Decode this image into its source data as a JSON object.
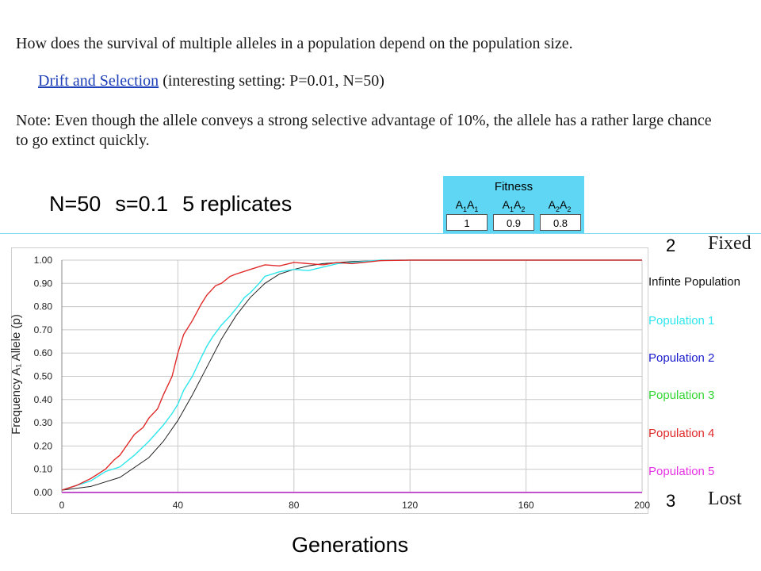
{
  "question": "How does the survival of multiple alleles in a population depend on the population size.",
  "link": {
    "text": "Drift and Selection",
    "suffix": " (interesting setting: P=0.01, N=50)"
  },
  "note": "Note: Even though the allele conveys a strong selective advantage of 10%, the allele has a rather large chance to go extinct quickly.",
  "params": {
    "n": "N=50",
    "s": "s=0.1",
    "reps": "5 replicates"
  },
  "fitness": {
    "title": "Fitness",
    "cols": [
      {
        "a": "A",
        "sa": "1",
        "b": "A",
        "sb": "1",
        "value": "1"
      },
      {
        "a": "A",
        "sa": "1",
        "b": "A",
        "sb": "2",
        "value": "0.9"
      },
      {
        "a": "A",
        "sa": "2",
        "b": "A",
        "sb": "2",
        "value": "0.8"
      }
    ]
  },
  "annotations": {
    "fixed_count": "2",
    "fixed_word": "Fixed",
    "lost_count": "3",
    "lost_word": "Lost"
  },
  "colors": {
    "infinite": "#222222",
    "pop1": "#2ee6ec",
    "pop2": "#1a1acc",
    "pop3": "#33d633",
    "pop4": "#e02a2a",
    "pop5": "#e633e6"
  },
  "chart_data": {
    "type": "line",
    "xlabel": "Generations",
    "ylabel": "Frequency A₁ Allele (p)",
    "xlim": [
      0,
      200
    ],
    "ylim": [
      0,
      1
    ],
    "xticks": [
      "0",
      "40",
      "80",
      "120",
      "160",
      "200"
    ],
    "yticks": [
      "0.00",
      "0.10",
      "0.20",
      "0.30",
      "0.40",
      "0.50",
      "0.60",
      "0.70",
      "0.80",
      "0.90",
      "1.00"
    ],
    "grid": true,
    "legend_position": "right",
    "series": [
      {
        "name": "Infinte Population",
        "x": [
          0,
          10,
          20,
          30,
          35,
          40,
          45,
          50,
          55,
          60,
          65,
          70,
          75,
          80,
          85,
          90,
          100,
          110,
          120,
          140,
          160,
          180,
          200
        ],
        "y": [
          0.01,
          0.026,
          0.065,
          0.15,
          0.22,
          0.31,
          0.42,
          0.54,
          0.66,
          0.76,
          0.84,
          0.9,
          0.94,
          0.96,
          0.975,
          0.985,
          0.994,
          0.998,
          1,
          1,
          1,
          1,
          1
        ]
      },
      {
        "name": "Population 1",
        "x": [
          0,
          5,
          10,
          15,
          20,
          25,
          30,
          35,
          38,
          40,
          42,
          45,
          48,
          50,
          52,
          55,
          58,
          60,
          63,
          65,
          68,
          70,
          75,
          80,
          85,
          90,
          95,
          100,
          110,
          120,
          200
        ],
        "y": [
          0.01,
          0.03,
          0.05,
          0.09,
          0.11,
          0.16,
          0.22,
          0.29,
          0.34,
          0.38,
          0.44,
          0.5,
          0.58,
          0.63,
          0.67,
          0.72,
          0.76,
          0.79,
          0.84,
          0.86,
          0.9,
          0.93,
          0.95,
          0.96,
          0.955,
          0.97,
          0.985,
          0.99,
          1,
          1,
          1
        ]
      },
      {
        "name": "Population 2",
        "x": [
          0,
          10,
          20,
          40,
          80,
          120,
          160,
          200
        ],
        "y": [
          0,
          0,
          0,
          0,
          0,
          0,
          0,
          0
        ]
      },
      {
        "name": "Population 3",
        "x": [
          0,
          10,
          20,
          40,
          80,
          120,
          160,
          200
        ],
        "y": [
          0,
          0,
          0,
          0,
          0,
          0,
          0,
          0
        ]
      },
      {
        "name": "Population 4",
        "x": [
          0,
          5,
          10,
          15,
          18,
          20,
          25,
          28,
          30,
          33,
          35,
          38,
          40,
          42,
          45,
          48,
          50,
          53,
          55,
          58,
          60,
          65,
          70,
          75,
          80,
          85,
          90,
          95,
          100,
          110,
          120,
          200
        ],
        "y": [
          0.01,
          0.03,
          0.06,
          0.1,
          0.14,
          0.16,
          0.25,
          0.28,
          0.32,
          0.36,
          0.42,
          0.5,
          0.6,
          0.68,
          0.74,
          0.81,
          0.85,
          0.89,
          0.9,
          0.93,
          0.94,
          0.96,
          0.98,
          0.975,
          0.99,
          0.985,
          0.98,
          0.99,
          0.985,
          0.998,
          1,
          1
        ]
      },
      {
        "name": "Population 5",
        "x": [
          0,
          10,
          20,
          40,
          80,
          120,
          160,
          200
        ],
        "y": [
          0,
          0,
          0,
          0,
          0,
          0,
          0,
          0
        ]
      }
    ]
  }
}
